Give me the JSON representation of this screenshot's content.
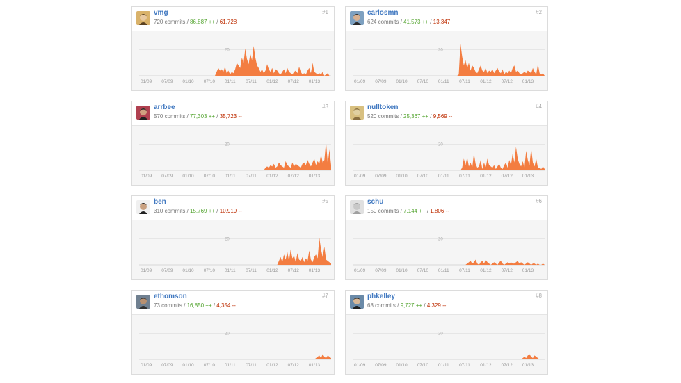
{
  "contributors": [
    {
      "login": "vmg",
      "commits": "720 commits",
      "additions": "86,887 ++",
      "deletions": "61,728",
      "rank": "#1",
      "avatar": {
        "bg": "#d9b26a",
        "fg": "#5a4020",
        "skin": "#e8c9a0"
      },
      "series": [
        0,
        0,
        0,
        0,
        0,
        0,
        0,
        0,
        0,
        0,
        0,
        0,
        0,
        0,
        0,
        0,
        0,
        0,
        0,
        0,
        0,
        0,
        0,
        0,
        0,
        0,
        0,
        0,
        0,
        0,
        0,
        0,
        0,
        0,
        0,
        0,
        0,
        0,
        0,
        0,
        0,
        0,
        0,
        0,
        0,
        0,
        3,
        6,
        4,
        5,
        3,
        7,
        2,
        4,
        1,
        3,
        2,
        5,
        10,
        8,
        6,
        14,
        10,
        21,
        13,
        9,
        17,
        12,
        23,
        14,
        8,
        6,
        3,
        5,
        2,
        4,
        9,
        5,
        3,
        6,
        2,
        5,
        4,
        2,
        1,
        3,
        5,
        2,
        6,
        3,
        2,
        1,
        3,
        4,
        2,
        7,
        3,
        1,
        2,
        1,
        4,
        6,
        2,
        10,
        3,
        2,
        1,
        2,
        1,
        3,
        0,
        1,
        2,
        0,
        0
      ]
    },
    {
      "login": "carlosmn",
      "commits": "624 commits",
      "additions": "41,573 ++",
      "deletions": "13,347",
      "rank": "#2",
      "avatar": {
        "bg": "#7da0c0",
        "fg": "#2a2a2a",
        "skin": "#d8b090"
      },
      "series": [
        0,
        0,
        0,
        0,
        0,
        0,
        0,
        0,
        0,
        0,
        0,
        0,
        0,
        0,
        0,
        0,
        0,
        0,
        0,
        0,
        0,
        0,
        0,
        0,
        0,
        0,
        0,
        0,
        0,
        0,
        0,
        0,
        0,
        0,
        0,
        0,
        0,
        0,
        0,
        0,
        0,
        0,
        0,
        0,
        0,
        0,
        0,
        0,
        0,
        0,
        0,
        0,
        0,
        0,
        0,
        0,
        0,
        0,
        0,
        0,
        0,
        0,
        0,
        1,
        25,
        15,
        8,
        12,
        6,
        10,
        4,
        8,
        6,
        3,
        2,
        5,
        8,
        4,
        3,
        6,
        2,
        4,
        3,
        5,
        2,
        4,
        6,
        3,
        2,
        5,
        1,
        3,
        2,
        4,
        2,
        6,
        8,
        3,
        4,
        2,
        1,
        2,
        3,
        2,
        4,
        3,
        2,
        6,
        3,
        1,
        9,
        2,
        1,
        2,
        0
      ]
    },
    {
      "login": "arrbee",
      "commits": "570 commits",
      "additions": "77,303 ++",
      "deletions": "35,723 --",
      "rank": "#3",
      "avatar": {
        "bg": "#b04050",
        "fg": "#202020",
        "skin": "#d0a080"
      },
      "series": [
        0,
        0,
        0,
        0,
        0,
        0,
        0,
        0,
        0,
        0,
        0,
        0,
        0,
        0,
        0,
        0,
        0,
        0,
        0,
        0,
        0,
        0,
        0,
        0,
        0,
        0,
        0,
        0,
        0,
        0,
        0,
        0,
        0,
        0,
        0,
        0,
        0,
        0,
        0,
        0,
        0,
        0,
        0,
        0,
        0,
        0,
        0,
        0,
        0,
        0,
        0,
        0,
        0,
        0,
        0,
        0,
        0,
        0,
        0,
        0,
        0,
        0,
        0,
        0,
        0,
        0,
        0,
        0,
        0,
        0,
        0,
        0,
        0,
        0,
        0,
        2,
        3,
        2,
        4,
        3,
        5,
        2,
        3,
        6,
        4,
        3,
        2,
        7,
        4,
        3,
        2,
        6,
        3,
        5,
        4,
        3,
        2,
        5,
        6,
        4,
        8,
        5,
        3,
        6,
        9,
        4,
        7,
        5,
        12,
        6,
        8,
        22,
        5,
        16,
        4
      ]
    },
    {
      "login": "nulltoken",
      "commits": "520 commits",
      "additions": "25,367 ++",
      "deletions": "9,569 --",
      "rank": "#4",
      "avatar": {
        "bg": "#d8c080",
        "fg": "#8a7040",
        "skin": "#e0d0a0"
      },
      "series": [
        0,
        0,
        0,
        0,
        0,
        0,
        0,
        0,
        0,
        0,
        0,
        0,
        0,
        0,
        0,
        0,
        0,
        0,
        0,
        0,
        0,
        0,
        0,
        0,
        0,
        0,
        0,
        0,
        0,
        0,
        0,
        0,
        0,
        0,
        0,
        0,
        0,
        0,
        0,
        0,
        0,
        0,
        0,
        0,
        0,
        0,
        0,
        0,
        0,
        0,
        0,
        0,
        0,
        0,
        0,
        0,
        0,
        0,
        0,
        0,
        0,
        0,
        0,
        0,
        0,
        2,
        9,
        4,
        10,
        3,
        6,
        2,
        13,
        5,
        2,
        3,
        8,
        1,
        6,
        2,
        9,
        4,
        3,
        2,
        4,
        1,
        3,
        5,
        2,
        1,
        4,
        6,
        2,
        8,
        4,
        13,
        6,
        18,
        9,
        5,
        3,
        7,
        2,
        15,
        8,
        4,
        17,
        6,
        3,
        9,
        2,
        2,
        1,
        3,
        1
      ]
    },
    {
      "login": "ben",
      "commits": "310 commits",
      "additions": "15,769 ++",
      "deletions": "10,919 --",
      "rank": "#5",
      "avatar": {
        "bg": "#f0f0f0",
        "fg": "#202020",
        "skin": "#c8a080"
      },
      "series": [
        0,
        0,
        0,
        0,
        0,
        0,
        0,
        0,
        0,
        0,
        0,
        0,
        0,
        0,
        0,
        0,
        0,
        0,
        0,
        0,
        0,
        0,
        0,
        0,
        0,
        0,
        0,
        0,
        0,
        0,
        0,
        0,
        0,
        0,
        0,
        0,
        0,
        0,
        0,
        0,
        0,
        0,
        0,
        0,
        0,
        0,
        0,
        0,
        0,
        0,
        0,
        0,
        0,
        0,
        0,
        0,
        0,
        0,
        0,
        0,
        0,
        0,
        0,
        0,
        0,
        0,
        0,
        0,
        0,
        0,
        0,
        0,
        0,
        0,
        0,
        0,
        0,
        0,
        0,
        0,
        0,
        0,
        0,
        3,
        6,
        2,
        8,
        4,
        10,
        3,
        12,
        5,
        7,
        2,
        9,
        4,
        3,
        6,
        2,
        5,
        3,
        11,
        4,
        2,
        6,
        8,
        5,
        21,
        12,
        6,
        14,
        4,
        3,
        2,
        1
      ]
    },
    {
      "login": "schu",
      "commits": "150 commits",
      "additions": "7,144 ++",
      "deletions": "1,806 --",
      "rank": "#6",
      "avatar": {
        "bg": "#e0e0e0",
        "fg": "#a0a0a0",
        "skin": "#c8c8c8"
      },
      "series": [
        0,
        0,
        0,
        0,
        0,
        0,
        0,
        0,
        0,
        0,
        0,
        0,
        0,
        0,
        0,
        0,
        0,
        0,
        0,
        0,
        0,
        0,
        0,
        0,
        0,
        0,
        0,
        0,
        0,
        0,
        0,
        0,
        0,
        0,
        0,
        0,
        0,
        0,
        0,
        0,
        0,
        0,
        0,
        0,
        0,
        0,
        0,
        0,
        0,
        0,
        0,
        0,
        0,
        0,
        0,
        0,
        0,
        0,
        0,
        0,
        0,
        0,
        0,
        0,
        0,
        0,
        0,
        0,
        1,
        2,
        3,
        1,
        2,
        4,
        1,
        0,
        2,
        3,
        1,
        4,
        2,
        1,
        0,
        1,
        2,
        1,
        0,
        2,
        3,
        1,
        0,
        1,
        2,
        1,
        2,
        1,
        1,
        2,
        3,
        1,
        2,
        1,
        0,
        1,
        2,
        1,
        0,
        1,
        1,
        0,
        1,
        0,
        0,
        1,
        0
      ]
    },
    {
      "login": "ethomson",
      "commits": "73 commits",
      "additions": "16,850 ++",
      "deletions": "4,354 --",
      "rank": "#7",
      "avatar": {
        "bg": "#708090",
        "fg": "#303030",
        "skin": "#b89070"
      },
      "series": [
        0,
        0,
        0,
        0,
        0,
        0,
        0,
        0,
        0,
        0,
        0,
        0,
        0,
        0,
        0,
        0,
        0,
        0,
        0,
        0,
        0,
        0,
        0,
        0,
        0,
        0,
        0,
        0,
        0,
        0,
        0,
        0,
        0,
        0,
        0,
        0,
        0,
        0,
        0,
        0,
        0,
        0,
        0,
        0,
        0,
        0,
        0,
        0,
        0,
        0,
        0,
        0,
        0,
        0,
        0,
        0,
        0,
        0,
        0,
        0,
        0,
        0,
        0,
        0,
        0,
        0,
        0,
        0,
        0,
        0,
        0,
        0,
        0,
        0,
        0,
        0,
        0,
        0,
        0,
        0,
        0,
        0,
        0,
        0,
        0,
        0,
        0,
        0,
        0,
        0,
        0,
        0,
        0,
        0,
        0,
        0,
        0,
        0,
        0,
        0,
        0,
        0,
        0,
        0,
        0,
        1,
        2,
        3,
        1,
        4,
        2,
        1,
        3,
        2,
        1
      ]
    },
    {
      "login": "phkelley",
      "commits": "68 commits",
      "additions": "9,727 ++",
      "deletions": "4,329 --",
      "rank": "#8",
      "avatar": {
        "bg": "#6a8aa8",
        "fg": "#202020",
        "skin": "#d8b898"
      },
      "series": [
        0,
        0,
        0,
        0,
        0,
        0,
        0,
        0,
        0,
        0,
        0,
        0,
        0,
        0,
        0,
        0,
        0,
        0,
        0,
        0,
        0,
        0,
        0,
        0,
        0,
        0,
        0,
        0,
        0,
        0,
        0,
        0,
        0,
        0,
        0,
        0,
        0,
        0,
        0,
        0,
        0,
        0,
        0,
        0,
        0,
        0,
        0,
        0,
        0,
        0,
        0,
        0,
        0,
        0,
        0,
        0,
        0,
        0,
        0,
        0,
        0,
        0,
        0,
        0,
        0,
        0,
        0,
        0,
        0,
        0,
        0,
        0,
        0,
        0,
        0,
        0,
        0,
        0,
        0,
        0,
        0,
        0,
        0,
        0,
        0,
        0,
        0,
        0,
        0,
        0,
        0,
        0,
        0,
        0,
        0,
        0,
        0,
        0,
        0,
        0,
        0,
        1,
        2,
        1,
        3,
        4,
        2,
        1,
        3,
        2,
        1,
        0,
        0,
        0,
        0
      ]
    }
  ],
  "chart_data": {
    "type": "area",
    "x_ticks": [
      "01/09",
      "07/09",
      "01/10",
      "07/10",
      "01/11",
      "07/11",
      "01/12",
      "07/12",
      "01/13"
    ],
    "y_tick": "20",
    "ylim": [
      0,
      30
    ],
    "fill_color": "#f37d41",
    "grid_color": "#dddddd",
    "weeks": 115
  }
}
